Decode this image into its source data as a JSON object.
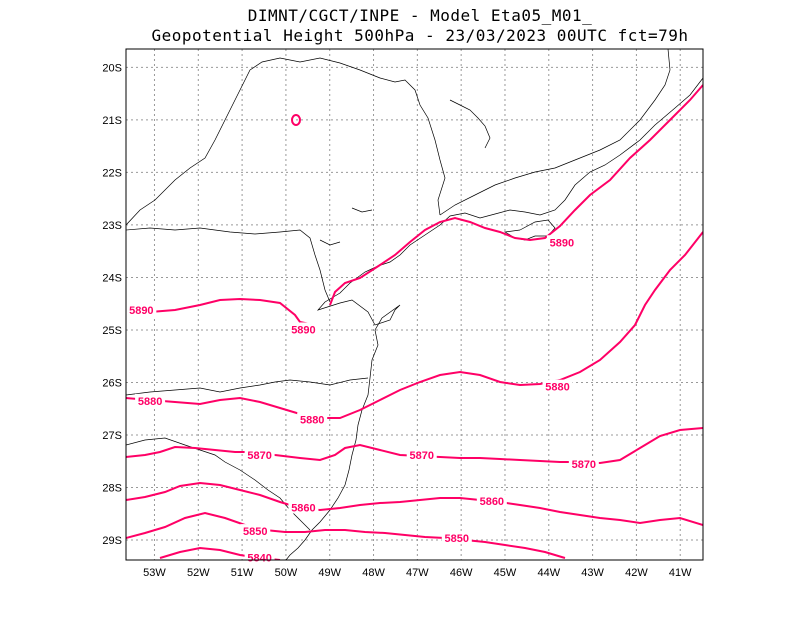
{
  "title": {
    "line1": "DIMNT/CGCT/INPE -  Model Eta05_M01_",
    "line2": "Geopotential Height 500hPa -  23/03/2023 00UTC fct=79h"
  },
  "map": {
    "lon_range": [
      -53.65,
      -40.48
    ],
    "lat_range": [
      -29.38,
      -19.65
    ],
    "lat_ticks": [
      "20S",
      "21S",
      "22S",
      "23S",
      "24S",
      "25S",
      "26S",
      "27S",
      "28S",
      "29S"
    ],
    "lon_ticks": [
      "53W",
      "52W",
      "51W",
      "50W",
      "49W",
      "48W",
      "47W",
      "46W",
      "45W",
      "44W",
      "43W",
      "42W",
      "41W"
    ],
    "contour_color": "#ff0066",
    "contour_levels": [
      {
        "label": "5890",
        "positions": [
          [
            -53.3,
            -24.62
          ],
          [
            -49.6,
            -24.99
          ],
          [
            -43.7,
            -23.33
          ]
        ]
      },
      {
        "label": "5880",
        "positions": [
          [
            -53.1,
            -26.35
          ],
          [
            -49.4,
            -26.7
          ],
          [
            -43.8,
            -26.08
          ]
        ]
      },
      {
        "label": "5870",
        "positions": [
          [
            -50.6,
            -27.38
          ],
          [
            -46.9,
            -27.38
          ],
          [
            -43.2,
            -27.55
          ]
        ]
      },
      {
        "label": "5860",
        "positions": [
          [
            -49.6,
            -28.38
          ],
          [
            -45.3,
            -28.26
          ]
        ]
      },
      {
        "label": "5850",
        "positions": [
          [
            -50.7,
            -28.83
          ],
          [
            -46.1,
            -28.96
          ]
        ]
      },
      {
        "label": "5840",
        "positions": [
          [
            -50.6,
            -29.33
          ]
        ]
      }
    ]
  }
}
